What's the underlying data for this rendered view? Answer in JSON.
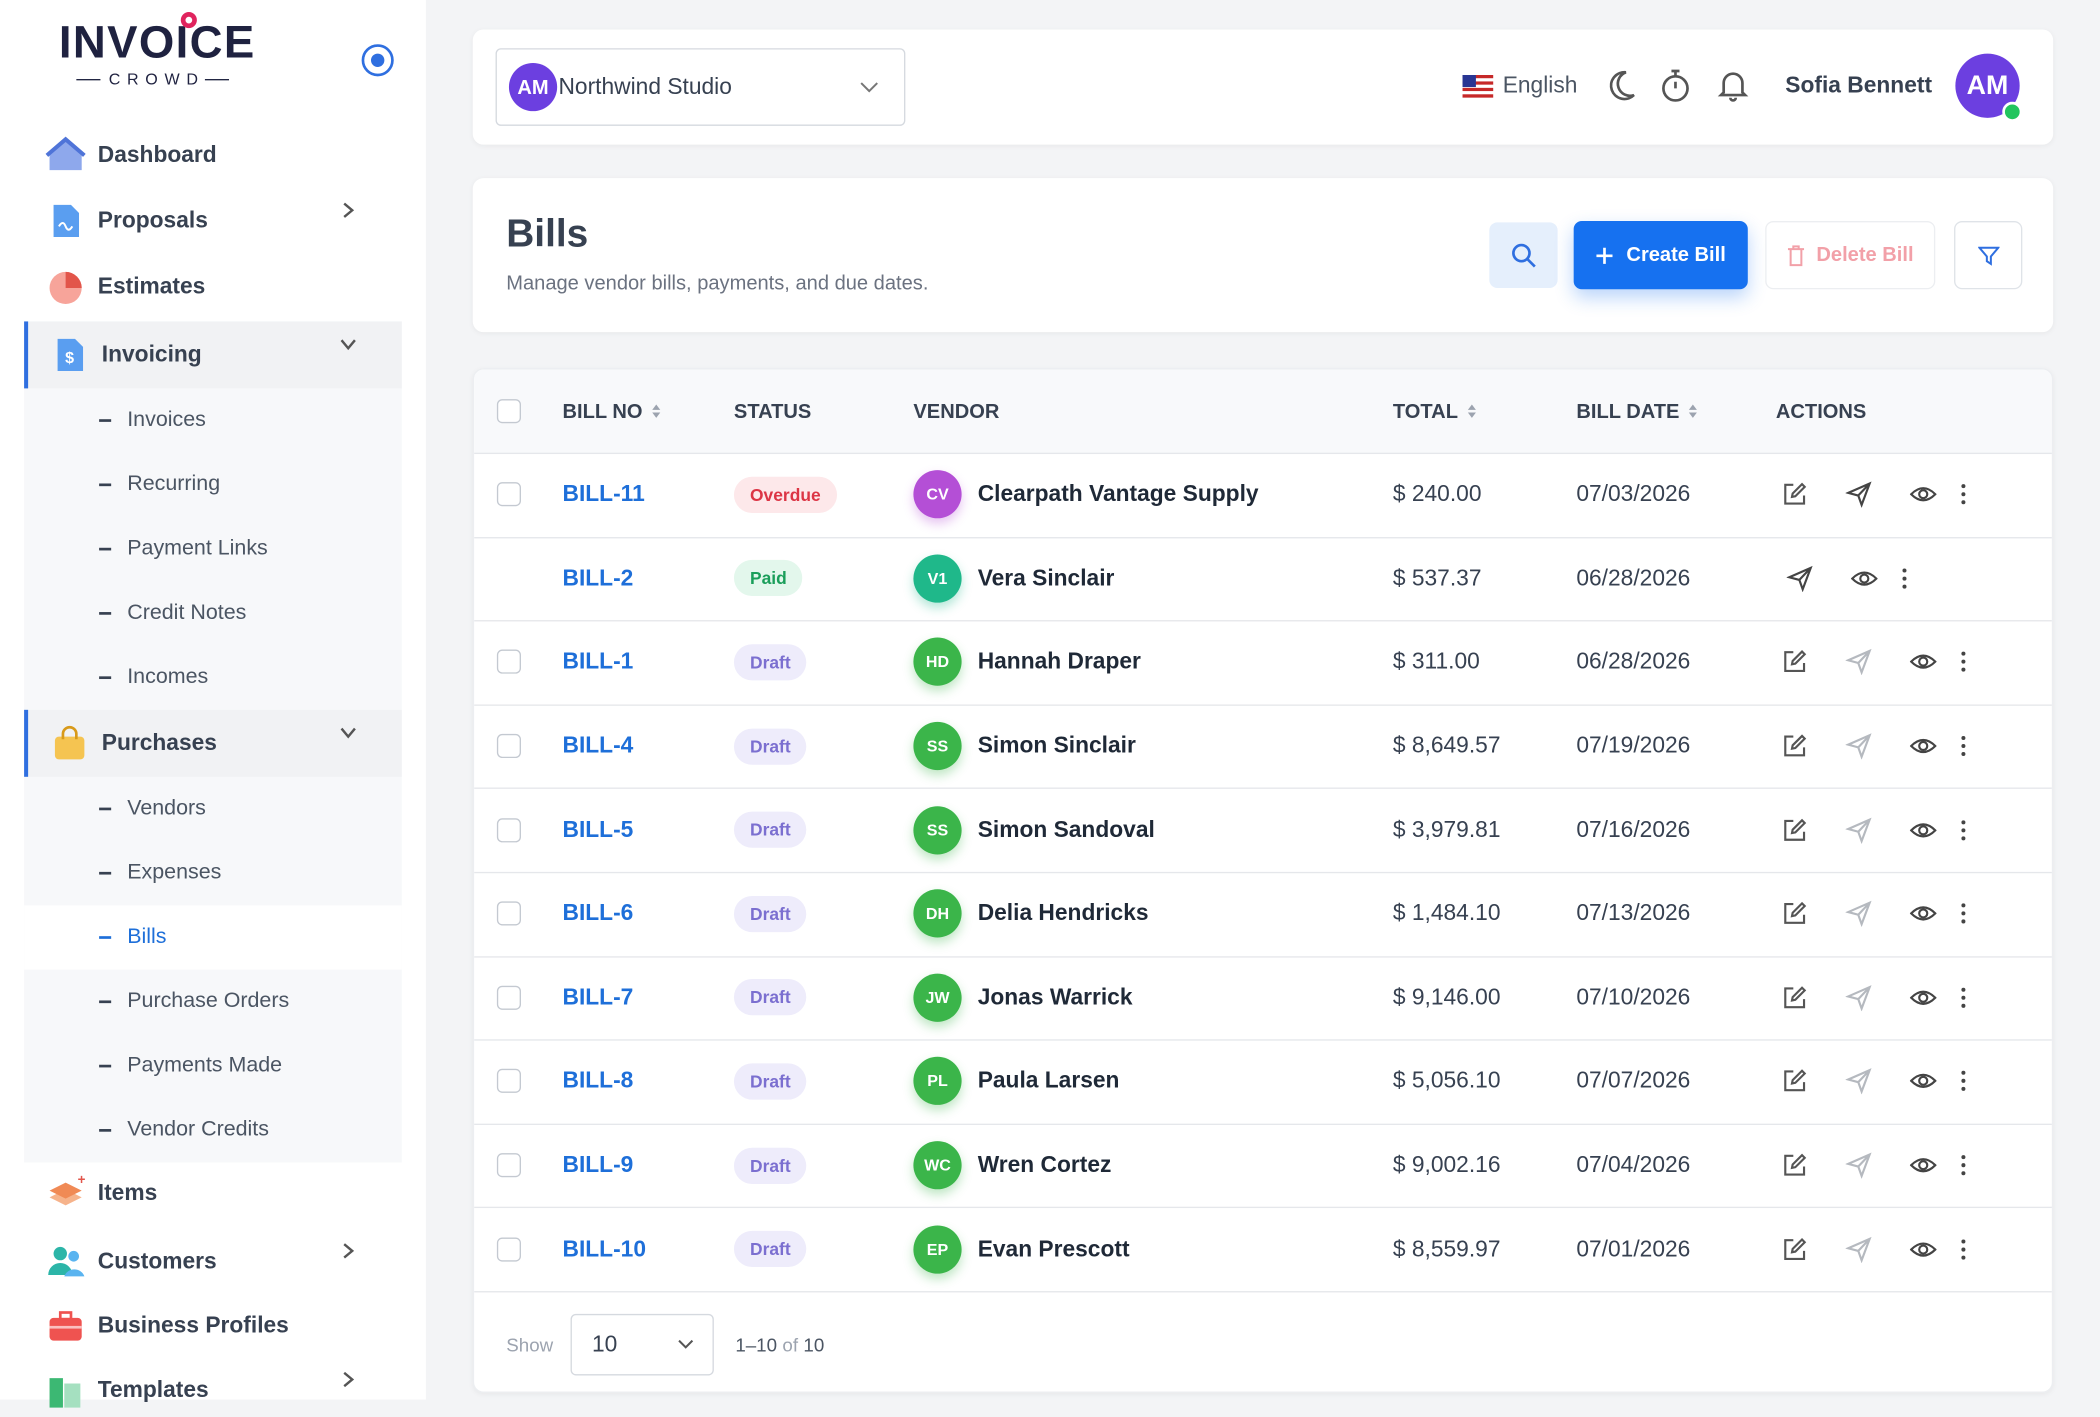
{
  "sidebar": {
    "logo_top": "INVOICE",
    "logo_bottom": "CROWD",
    "items": [
      "Dashboard",
      "Proposals",
      "Estimates"
    ],
    "invoicing": {
      "label": "Invoicing",
      "children": [
        "Invoices",
        "Recurring",
        "Payment Links",
        "Credit Notes",
        "Incomes"
      ]
    },
    "purchases": {
      "label": "Purchases",
      "children": [
        "Vendors",
        "Expenses",
        "Bills",
        "Purchase Orders",
        "Payments Made",
        "Vendor Credits"
      ]
    },
    "more_items": [
      "Items",
      "Customers",
      "Business Profiles",
      "Templates"
    ]
  },
  "header": {
    "org_initials": "AM",
    "org_name": "Northwind Studio",
    "language": "English",
    "user_name": "Sofia Bennett",
    "user_initials": "AM"
  },
  "page": {
    "title": "Bills",
    "subtitle": "Manage vendor bills, payments, and due dates.",
    "create_button": "Create Bill",
    "delete_button": "Delete Bill"
  },
  "table": {
    "columns": [
      {
        "label": "BILL NO",
        "sortable": true
      },
      {
        "label": "STATUS",
        "sortable": false
      },
      {
        "label": "VENDOR",
        "sortable": false
      },
      {
        "label": "TOTAL",
        "sortable": true
      },
      {
        "label": "BILL DATE",
        "sortable": true
      },
      {
        "label": "ACTIONS",
        "sortable": false
      }
    ],
    "rows": [
      {
        "bill_no": "BILL-11",
        "status": "Overdue",
        "status_color": "#dc3545",
        "status_bg": "#fde8ea",
        "initials": "CV",
        "avatar_color": "#b44fd6",
        "vendor": "Clearpath Vantage Supply",
        "total": "$ 240.00",
        "date": "07/03/2026",
        "selectable": true,
        "editable": true,
        "send_enabled": true
      },
      {
        "bill_no": "BILL-2",
        "status": "Paid",
        "status_color": "#1a9e5a",
        "status_bg": "#e3f7ec",
        "initials": "V1",
        "avatar_color": "#1fb88a",
        "vendor": "Vera Sinclair",
        "total": "$ 537.37",
        "date": "06/28/2026",
        "selectable": false,
        "editable": false,
        "send_enabled": true
      },
      {
        "bill_no": "BILL-1",
        "status": "Draft",
        "status_color": "#7b6fd0",
        "status_bg": "#eeecfb",
        "initials": "HD",
        "avatar_color": "#3bb54a",
        "vendor": "Hannah Draper",
        "total": "$ 311.00",
        "date": "06/28/2026",
        "selectable": true,
        "editable": true,
        "send_enabled": false
      },
      {
        "bill_no": "BILL-4",
        "status": "Draft",
        "status_color": "#7b6fd0",
        "status_bg": "#eeecfb",
        "initials": "SS",
        "avatar_color": "#3bb54a",
        "vendor": "Simon Sinclair",
        "total": "$ 8,649.57",
        "date": "07/19/2026",
        "selectable": true,
        "editable": true,
        "send_enabled": false
      },
      {
        "bill_no": "BILL-5",
        "status": "Draft",
        "status_color": "#7b6fd0",
        "status_bg": "#eeecfb",
        "initials": "SS",
        "avatar_color": "#3bb54a",
        "vendor": "Simon Sandoval",
        "total": "$ 3,979.81",
        "date": "07/16/2026",
        "selectable": true,
        "editable": true,
        "send_enabled": false
      },
      {
        "bill_no": "BILL-6",
        "status": "Draft",
        "status_color": "#7b6fd0",
        "status_bg": "#eeecfb",
        "initials": "DH",
        "avatar_color": "#3bb54a",
        "vendor": "Delia Hendricks",
        "total": "$ 1,484.10",
        "date": "07/13/2026",
        "selectable": true,
        "editable": true,
        "send_enabled": false
      },
      {
        "bill_no": "BILL-7",
        "status": "Draft",
        "status_color": "#7b6fd0",
        "status_bg": "#eeecfb",
        "initials": "JW",
        "avatar_color": "#3bb54a",
        "vendor": "Jonas Warrick",
        "total": "$ 9,146.00",
        "date": "07/10/2026",
        "selectable": true,
        "editable": true,
        "send_enabled": false
      },
      {
        "bill_no": "BILL-8",
        "status": "Draft",
        "status_color": "#7b6fd0",
        "status_bg": "#eeecfb",
        "initials": "PL",
        "avatar_color": "#3bb54a",
        "vendor": "Paula Larsen",
        "total": "$ 5,056.10",
        "date": "07/07/2026",
        "selectable": true,
        "editable": true,
        "send_enabled": false
      },
      {
        "bill_no": "BILL-9",
        "status": "Draft",
        "status_color": "#7b6fd0",
        "status_bg": "#eeecfb",
        "initials": "WC",
        "avatar_color": "#3bb54a",
        "vendor": "Wren Cortez",
        "total": "$ 9,002.16",
        "date": "07/04/2026",
        "selectable": true,
        "editable": true,
        "send_enabled": false
      },
      {
        "bill_no": "BILL-10",
        "status": "Draft",
        "status_color": "#7b6fd0",
        "status_bg": "#eeecfb",
        "initials": "EP",
        "avatar_color": "#3bb54a",
        "vendor": "Evan Prescott",
        "total": "$ 8,559.97",
        "date": "07/01/2026",
        "selectable": true,
        "editable": true,
        "send_enabled": false
      }
    ]
  },
  "footer": {
    "show_label": "Show",
    "page_size": 10,
    "range": "1–10",
    "of_label": "of",
    "total": 10
  }
}
